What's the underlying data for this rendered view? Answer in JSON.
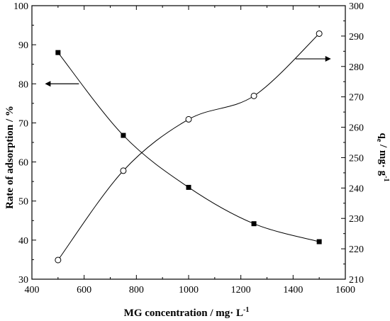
{
  "chart_data": {
    "type": "line",
    "x": [
      500,
      750,
      1000,
      1250,
      1500
    ],
    "xlabel": "MG concentration / mg· L",
    "xlabel_superscript": "-1",
    "xlim": [
      400,
      1600
    ],
    "xticks": [
      400,
      600,
      800,
      1000,
      1200,
      1400,
      1600
    ],
    "ylabel_left": "Rate of adsorption / %",
    "ylim_left": [
      30,
      100
    ],
    "yticks_left": [
      30,
      40,
      50,
      60,
      70,
      80,
      90,
      100
    ],
    "ylabel_right_main": "q",
    "ylabel_right_sub": "e",
    "ylabel_right_rest": " / mg· g",
    "ylabel_right_superscript": "-1",
    "ylim_right": [
      210,
      300
    ],
    "yticks_right": [
      210,
      220,
      230,
      240,
      250,
      260,
      270,
      280,
      290,
      300
    ],
    "series": [
      {
        "axis": "left",
        "marker": "filled-square",
        "values": [
          88.0,
          66.8,
          53.5,
          44.2,
          39.6
        ]
      },
      {
        "axis": "right",
        "marker": "open-circle",
        "values": [
          216.3,
          245.7,
          262.6,
          270.3,
          290.8
        ]
      }
    ],
    "grid": false,
    "legend": "none",
    "annotations": [
      {
        "type": "arrow",
        "direction": "left",
        "target_axis": "left"
      },
      {
        "type": "arrow",
        "direction": "right",
        "target_axis": "right"
      }
    ]
  }
}
